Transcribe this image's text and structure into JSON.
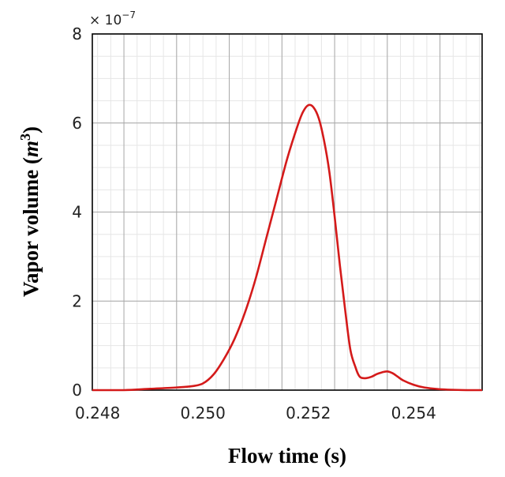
{
  "chart_data": {
    "type": "line",
    "title": "",
    "xlabel": "Flow time (s)",
    "ylabel_main": "Vapor volume (",
    "ylabel_unit": "m",
    "ylabel_exp": "3",
    "ylabel_close": ")",
    "y_multiplier_prefix": "× 10",
    "y_multiplier_exp": "−7",
    "xlim": [
      0.2479,
      0.2553
    ],
    "ylim": [
      0,
      8
    ],
    "x_ticks": [
      0.248,
      0.25,
      0.252,
      0.254
    ],
    "x_tick_labels": [
      "0.248",
      "0.250",
      "0.252",
      "0.254"
    ],
    "y_ticks": [
      0,
      2,
      4,
      6,
      8
    ],
    "y_tick_labels": [
      "0",
      "2",
      "4",
      "6",
      "8"
    ],
    "grid": true,
    "minor_grid": true,
    "series": [
      {
        "color": "#d41a1a",
        "x": [
          0.2479,
          0.2485,
          0.249,
          0.2495,
          0.2498,
          0.25,
          0.2502,
          0.2504,
          0.2506,
          0.2508,
          0.251,
          0.2512,
          0.2514,
          0.2516,
          0.2518,
          0.2519,
          0.252,
          0.2521,
          0.2522,
          0.2523,
          0.2524,
          0.2525,
          0.2526,
          0.2527,
          0.2528,
          0.2529,
          0.25295,
          0.253,
          0.2531,
          0.2532,
          0.2533,
          0.2534,
          0.2535,
          0.2536,
          0.2537,
          0.2538,
          0.254,
          0.2542,
          0.2545,
          0.255,
          0.2553
        ],
        "y": [
          0.0,
          0.0,
          0.03,
          0.06,
          0.09,
          0.15,
          0.35,
          0.7,
          1.15,
          1.75,
          2.5,
          3.4,
          4.3,
          5.2,
          5.95,
          6.25,
          6.4,
          6.35,
          6.1,
          5.6,
          4.9,
          3.9,
          2.8,
          1.8,
          0.9,
          0.5,
          0.35,
          0.28,
          0.27,
          0.3,
          0.36,
          0.4,
          0.42,
          0.38,
          0.3,
          0.22,
          0.12,
          0.06,
          0.02,
          0.0,
          0.0
        ]
      }
    ]
  }
}
